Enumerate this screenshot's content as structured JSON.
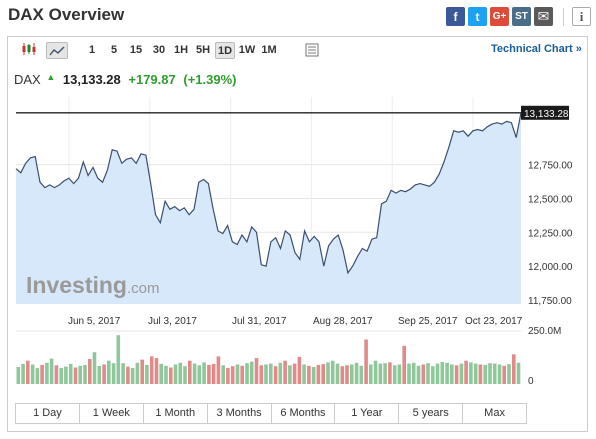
{
  "header": {
    "title": "DAX Overview",
    "share": [
      {
        "icon": "facebook-icon",
        "glyph": "f",
        "color": "#3b5998"
      },
      {
        "icon": "twitter-icon",
        "glyph": "t",
        "color": "#1da1f2"
      },
      {
        "icon": "google-plus-icon",
        "glyph": "G+",
        "color": "#dd4b39"
      },
      {
        "icon": "stocktwits-icon",
        "glyph": "ST",
        "color": "#4a6e8a"
      },
      {
        "icon": "email-icon",
        "glyph": "✉",
        "color": "#5a5a5a"
      }
    ],
    "info_glyph": "i"
  },
  "toolbar": {
    "chart_type_icons": [
      "candlestick-icon",
      "area-chart-icon"
    ],
    "intervals": [
      "1",
      "5",
      "15",
      "30",
      "1H",
      "5H",
      "1D",
      "1W",
      "1M"
    ],
    "active_interval": "1D",
    "technical_link": "Technical Chart »"
  },
  "quote": {
    "name": "DAX",
    "last": "13,133.28",
    "change": "+179.87",
    "change_pct": "(+1.39%)",
    "arrow": "▲"
  },
  "chart_data": {
    "type": "area",
    "title": "",
    "x_tick_labels": [
      "Jun 5, 2017",
      "Jul 3, 2017",
      "Jul 31, 2017",
      "Aug 28, 2017",
      "Sep 25, 2017",
      "Oct 23, 2017"
    ],
    "y_tick_labels": [
      "12,750.00",
      "12,500.00",
      "12,250.00",
      "12,000.00",
      "11,750.00"
    ],
    "y_ticks": [
      12750,
      12500,
      12250,
      12000,
      11750
    ],
    "ylim": [
      11720,
      13250
    ],
    "last_price_label": "13,133.28",
    "last_price": 13133.28,
    "watermark": "Investing",
    "watermark_suffix": ".com",
    "colors": {
      "line": "#3a4f6e",
      "fill": "#d6e8fa",
      "up": "#8fc79a",
      "down": "#e08a8a"
    },
    "values": [
      12720,
      12690,
      12760,
      12800,
      12810,
      12620,
      12580,
      12600,
      12580,
      12600,
      12630,
      12650,
      12610,
      12650,
      12770,
      12670,
      12730,
      12650,
      12620,
      12710,
      12860,
      12850,
      12760,
      12790,
      12800,
      12760,
      12830,
      12820,
      12610,
      12380,
      12320,
      12480,
      12420,
      12440,
      12410,
      12430,
      12380,
      12420,
      12620,
      12640,
      12610,
      12420,
      12260,
      12240,
      12300,
      12180,
      12160,
      12230,
      12180,
      12290,
      12250,
      12010,
      12000,
      12180,
      12210,
      12130,
      12260,
      12230,
      12100,
      12050,
      12260,
      12180,
      12220,
      12180,
      12000,
      12150,
      12200,
      12230,
      12120,
      11950,
      12000,
      12070,
      12130,
      12110,
      12200,
      12210,
      12460,
      12480,
      12560,
      12540,
      12560,
      12550,
      12570,
      12600,
      12610,
      12600,
      12590,
      12620,
      12680,
      12770,
      12880,
      13000,
      12990,
      13000,
      12960,
      13000,
      13010,
      13000,
      13030,
      13050,
      13060,
      13050,
      13070,
      13060,
      12950,
      13133
    ],
    "volume": {
      "axis_label": "250.0M",
      "axis_max": 250,
      "axis_zero": "0",
      "unit": "M",
      "values": [
        80,
        95,
        110,
        92,
        75,
        90,
        100,
        120,
        88,
        76,
        82,
        95,
        78,
        86,
        90,
        118,
        150,
        85,
        92,
        110,
        98,
        230,
        98,
        82,
        76,
        100,
        115,
        90,
        130,
        122,
        95,
        86,
        78,
        92,
        100,
        84,
        110,
        96,
        88,
        102,
        90,
        95,
        130,
        88,
        76,
        84,
        92,
        86,
        98,
        105,
        122,
        88,
        92,
        96,
        84,
        100,
        110,
        88,
        96,
        128,
        92,
        86,
        80,
        90,
        94,
        102,
        110,
        96,
        84,
        88,
        92,
        100,
        86,
        210,
        92,
        110,
        96,
        98,
        102,
        88,
        92,
        180,
        96,
        100,
        86,
        92,
        98,
        84,
        96,
        104,
        100,
        92,
        88,
        96,
        110,
        102,
        96,
        92,
        90,
        98,
        96,
        92,
        86,
        94,
        140,
        100
      ],
      "down": [
        0,
        0,
        1,
        0,
        0,
        1,
        0,
        0,
        1,
        0,
        0,
        0,
        1,
        0,
        0,
        1,
        0,
        0,
        1,
        0,
        0,
        0,
        0,
        1,
        0,
        0,
        1,
        0,
        1,
        1,
        0,
        0,
        1,
        0,
        0,
        0,
        1,
        0,
        0,
        0,
        1,
        1,
        1,
        0,
        1,
        1,
        0,
        1,
        0,
        0,
        1,
        1,
        0,
        0,
        1,
        0,
        1,
        0,
        1,
        1,
        0,
        1,
        0,
        1,
        1,
        0,
        0,
        0,
        1,
        1,
        0,
        0,
        0,
        1,
        0,
        0,
        0,
        0,
        1,
        0,
        0,
        1,
        0,
        0,
        0,
        1,
        0,
        0,
        0,
        0,
        0,
        0,
        1,
        0,
        1,
        0,
        0,
        1,
        0,
        0,
        0,
        0,
        1,
        0,
        1,
        0
      ]
    }
  },
  "periods": [
    "1 Day",
    "1 Week",
    "1 Month",
    "3 Months",
    "6 Months",
    "1 Year",
    "5 years",
    "Max"
  ]
}
